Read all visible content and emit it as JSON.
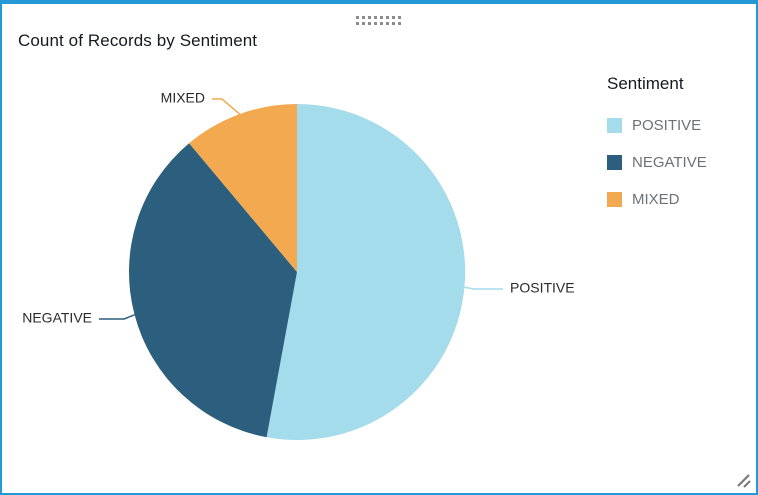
{
  "widget": {
    "title": "Count of Records by Sentiment",
    "selection_border_color": "#2599d6"
  },
  "legend": {
    "title": "Sentiment"
  },
  "icons": {
    "drag_handle": "dot-grid-handle",
    "resize_handle": "diagonal-grip"
  },
  "chart_data": {
    "type": "pie",
    "title": "Count of Records by Sentiment",
    "categories": [
      "POSITIVE",
      "NEGATIVE",
      "MIXED"
    ],
    "values_percent": [
      52.9,
      36.0,
      11.1
    ],
    "colors": [
      "#a5dcec",
      "#2b5f7d",
      "#f2a950"
    ],
    "start_angle_deg": 0,
    "direction": "clockwise",
    "slice_labels_visible": true,
    "legend_title": "Sentiment",
    "legend_position": "right"
  }
}
